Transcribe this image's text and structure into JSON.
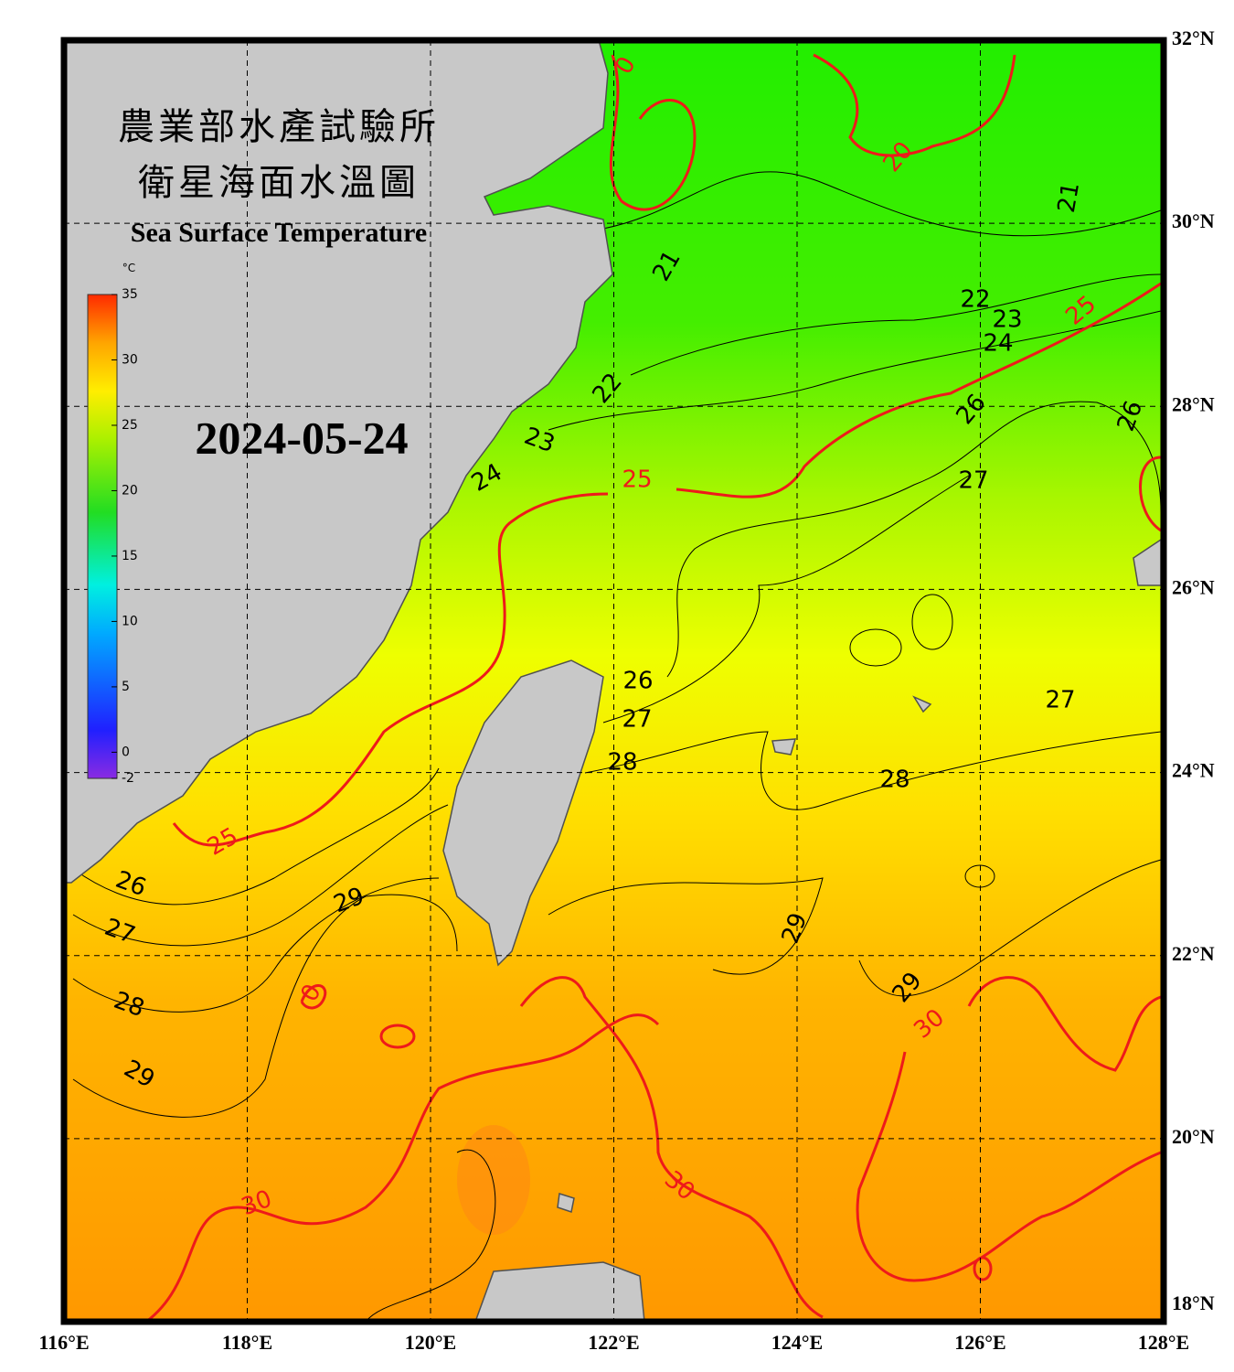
{
  "map": {
    "title_zh_1": "農業部水產試驗所",
    "title_zh_2": "衛星海面水溫圖",
    "title_en": "Sea Surface Temperature",
    "date": "2024-05-24",
    "colorbar": {
      "unit": "°C",
      "lim": [
        -2,
        35
      ],
      "ticks": [
        35,
        30,
        25,
        20,
        15,
        10,
        5,
        0,
        -2
      ]
    },
    "xlim": [
      116,
      128
    ],
    "ylim": [
      18,
      32
    ],
    "xticks": [
      {
        "value": 116,
        "label": "116°E"
      },
      {
        "value": 118,
        "label": "118°E"
      },
      {
        "value": 120,
        "label": "120°E"
      },
      {
        "value": 122,
        "label": "122°E"
      },
      {
        "value": 124,
        "label": "124°E"
      },
      {
        "value": 126,
        "label": "126°E"
      },
      {
        "value": 128,
        "label": "128°E"
      }
    ],
    "yticks": [
      {
        "value": 32,
        "label": "32°N"
      },
      {
        "value": 30,
        "label": "30°N"
      },
      {
        "value": 28,
        "label": "28°N"
      },
      {
        "value": 26,
        "label": "26°N"
      },
      {
        "value": 24,
        "label": "24°N"
      },
      {
        "value": 22,
        "label": "22°N"
      },
      {
        "value": 20,
        "label": "20°N"
      },
      {
        "value": 18,
        "label": "18°N"
      }
    ],
    "contour_labels": [
      "0",
      "20",
      "21",
      "21",
      "22",
      "23",
      "24",
      "25",
      "26",
      "26",
      "22",
      "23",
      "24",
      "25",
      "27",
      "26",
      "27",
      "28",
      "28",
      "27",
      "25",
      "26",
      "27",
      "28",
      "29",
      "29",
      "29",
      "30",
      "29",
      "30",
      "30",
      "0"
    ]
  }
}
